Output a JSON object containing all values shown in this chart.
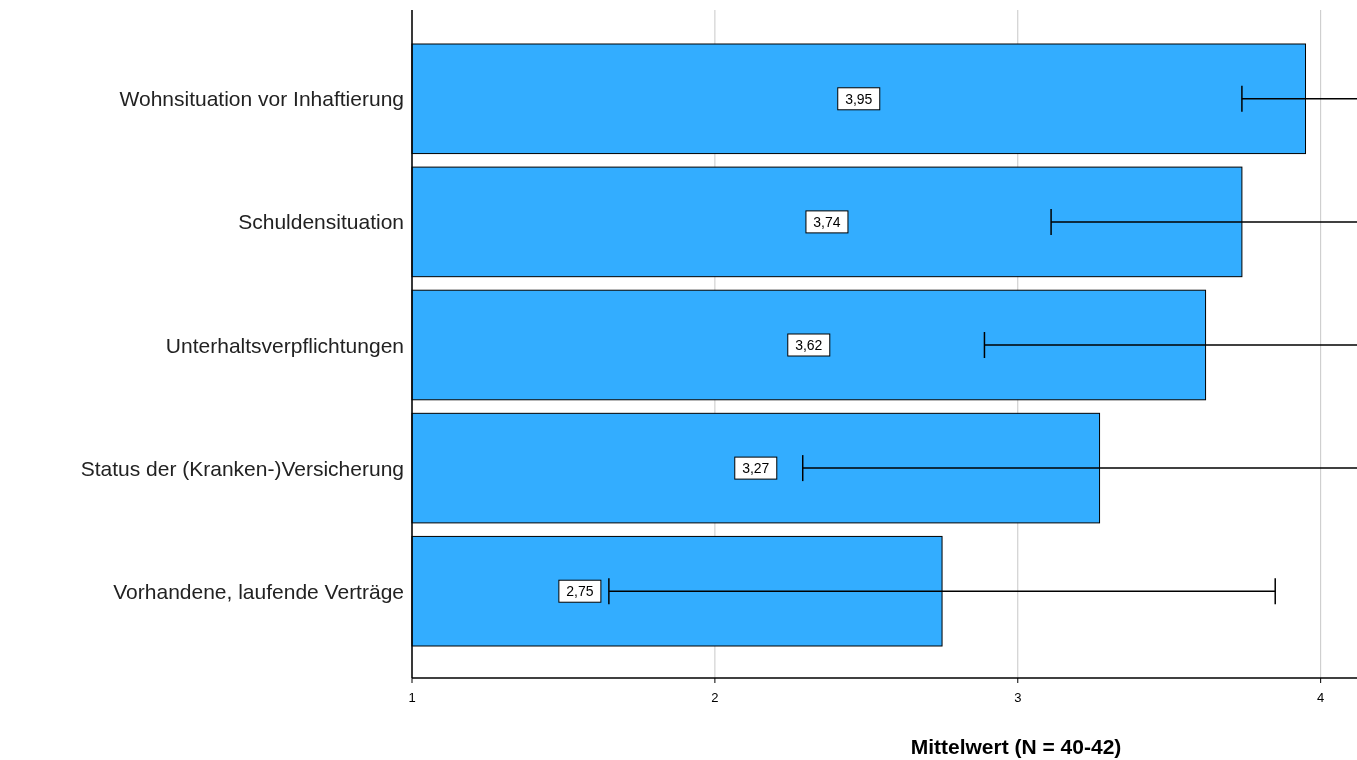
{
  "chart_data": {
    "type": "bar",
    "orientation": "horizontal",
    "xlabel": "Mittelwert (N = 40-42)",
    "categories": [
      "Wohnsituation vor Inhaftierung",
      "Schuldensituation",
      "Unterhaltsverpflichtungen",
      "Status der (Kranken-)Versicherung",
      "Vorhandene, laufende Verträge"
    ],
    "values": [
      3.95,
      3.74,
      3.62,
      3.27,
      2.75
    ],
    "errors": [
      0.21,
      0.63,
      0.73,
      0.98,
      1.1
    ],
    "value_labels": [
      "3,95",
      "3,74",
      "3,62",
      "3,27",
      "2,75"
    ],
    "color": "#33adff",
    "xlim": [
      1,
      4.12
    ],
    "xticks": [
      1,
      2,
      3,
      4
    ],
    "grid": "x"
  }
}
